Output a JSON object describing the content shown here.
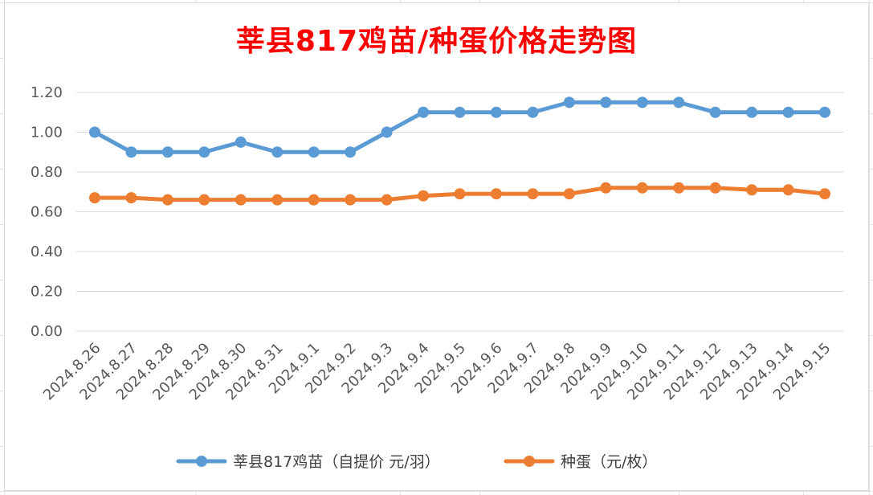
{
  "chart_data": {
    "type": "line",
    "title": "莘县817鸡苗/种蛋价格走势图",
    "xlabel": "",
    "ylabel": "",
    "ylim": [
      0,
      1.2
    ],
    "yticks": [
      "0.00",
      "0.20",
      "0.40",
      "0.60",
      "0.80",
      "1.00",
      "1.20"
    ],
    "grid": true,
    "legend_position": "bottom",
    "categories": [
      "2024.8.26",
      "2024.8.27",
      "2024.8.28",
      "2024.8.29",
      "2024.8.30",
      "2024.8.31",
      "2024.9.1",
      "2024.9.2",
      "2024.9.3",
      "2024.9.4",
      "2024.9.5",
      "2024.9.6",
      "2024.9.7",
      "2024.9.8",
      "2024.9.9",
      "2024.9.10",
      "2024.9.11",
      "2024.9.12",
      "2024.9.13",
      "2024.9.14",
      "2024.9.15"
    ],
    "series": [
      {
        "name": "莘县817鸡苗（自提价 元/羽）",
        "color": "#5b9bd5",
        "values": [
          1.0,
          0.9,
          0.9,
          0.9,
          0.95,
          0.9,
          0.9,
          0.9,
          1.0,
          1.1,
          1.1,
          1.1,
          1.1,
          1.15,
          1.15,
          1.15,
          1.15,
          1.1,
          1.1,
          1.1,
          1.1
        ]
      },
      {
        "name": "种蛋（元/枚）",
        "color": "#ed7d31",
        "values": [
          0.67,
          0.67,
          0.66,
          0.66,
          0.66,
          0.66,
          0.66,
          0.66,
          0.66,
          0.68,
          0.69,
          0.69,
          0.69,
          0.69,
          0.72,
          0.72,
          0.72,
          0.72,
          0.71,
          0.71,
          0.69
        ]
      }
    ]
  }
}
